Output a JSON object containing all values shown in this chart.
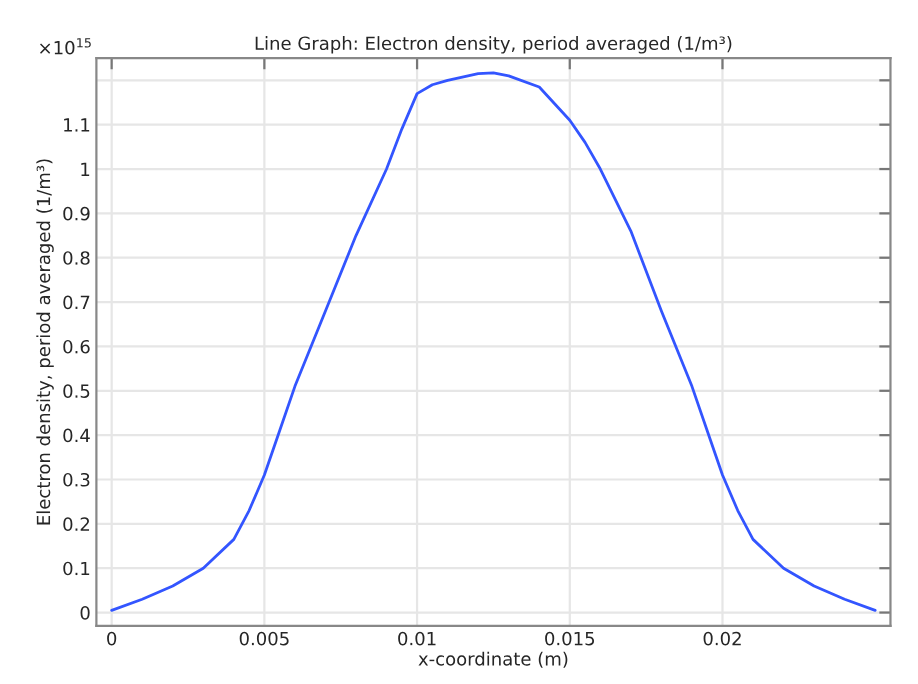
{
  "chart_data": {
    "type": "line",
    "title": "Line Graph: Electron density, period averaged (1/m³)",
    "xlabel": "x-coordinate (m)",
    "ylabel": "Electron density, period averaged (1/m³)",
    "annotations": [
      "×10$^{15}$"
    ],
    "x": [
      0,
      0.001,
      0.002,
      0.003,
      0.004,
      0.0045,
      0.005,
      0.0055,
      0.006,
      0.007,
      0.008,
      0.009,
      0.0095,
      0.01,
      0.0105,
      0.011,
      0.012,
      0.0125,
      0.013,
      0.014,
      0.015,
      0.0155,
      0.016,
      0.017,
      0.018,
      0.019,
      0.0195,
      0.02,
      0.0205,
      0.021,
      0.022,
      0.023,
      0.024,
      0.025
    ],
    "series": [
      {
        "color": "#3355ff",
        "values": [
          0.005,
          0.03,
          0.06,
          0.1,
          0.165,
          0.23,
          0.31,
          0.41,
          0.51,
          0.68,
          0.85,
          1.0,
          1.09,
          1.17,
          1.19,
          1.2,
          1.215,
          1.217,
          1.21,
          1.185,
          1.11,
          1.06,
          1.0,
          0.86,
          0.68,
          0.51,
          0.41,
          0.31,
          0.23,
          0.165,
          0.1,
          0.06,
          0.03,
          0.005
        ]
      }
    ],
    "xlim": [
      -0.0005,
      0.0255
    ],
    "ylim": [
      -0.03,
      1.25
    ],
    "xticks": [
      0,
      0.005,
      0.01,
      0.015,
      0.02
    ],
    "yticks": [
      0,
      0.1,
      0.2,
      0.3,
      0.4,
      0.5,
      0.6,
      0.7,
      0.8,
      0.9,
      1,
      1.1,
      {
        "value": 1.2,
        "label": null
      }
    ],
    "grid": true,
    "line_style": "solid"
  }
}
